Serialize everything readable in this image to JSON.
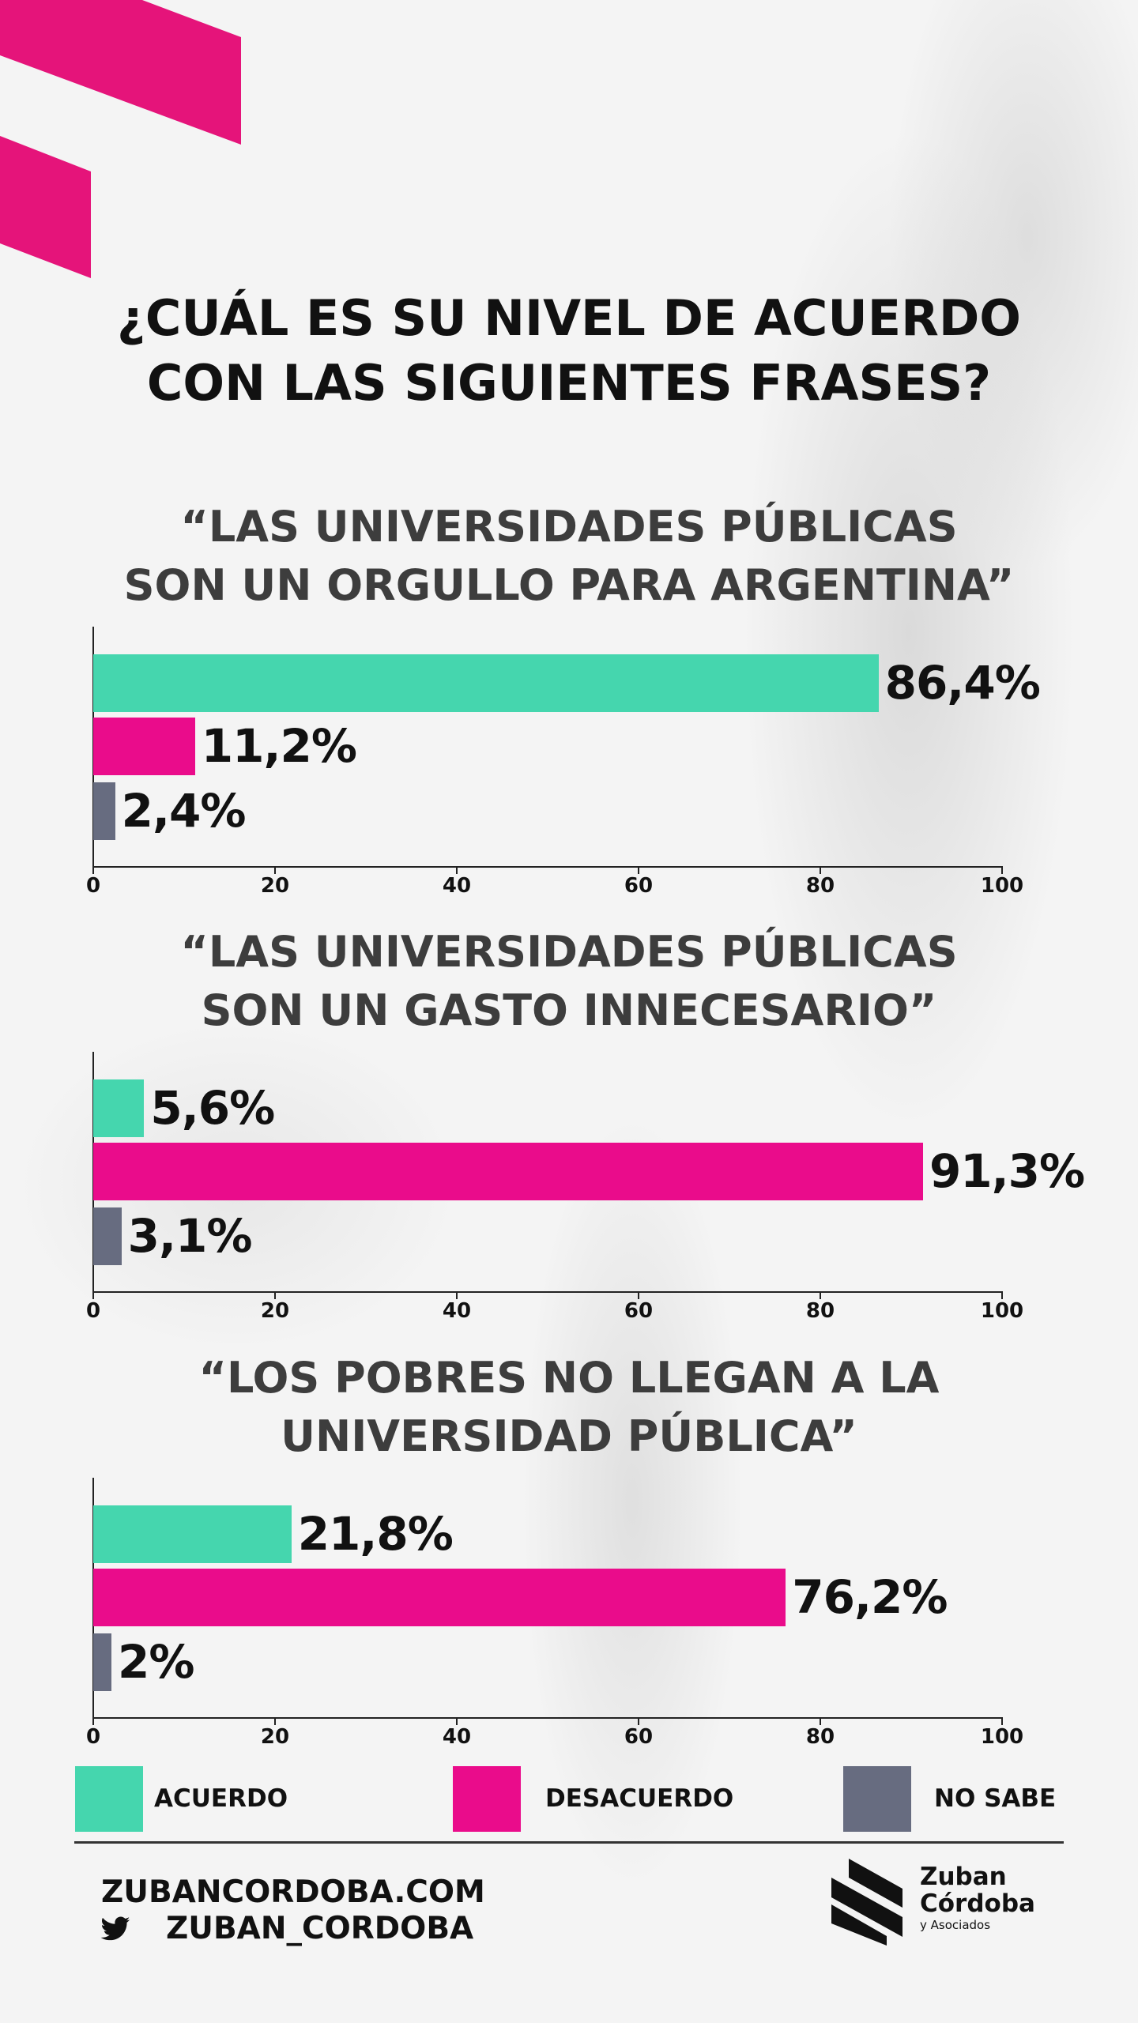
{
  "title": {
    "line1": "¿CUÁL ES SU NIVEL DE ACUERDO",
    "line2": "CON LAS SIGUIENTES FRASES?"
  },
  "colors": {
    "acuerdo": "#45d6ae",
    "desacuerdo": "#ea0c8b",
    "no_sabe": "#676c80",
    "deco": "#e5147a"
  },
  "chart_data": [
    {
      "type": "bar",
      "orientation": "horizontal",
      "title": "“LAS UNIVERSIDADES PÚBLICAS SON UN ORGULLO PARA ARGENTINA”",
      "title_lines": [
        "“LAS UNIVERSIDADES PÚBLICAS",
        "SON UN ORGULLO PARA ARGENTINA”"
      ],
      "categories": [
        "Acuerdo",
        "Desacuerdo",
        "No sabe"
      ],
      "values": [
        86.4,
        11.2,
        2.4
      ],
      "labels": [
        "86,4%",
        "11,2%",
        "2,4%"
      ],
      "xlim": [
        0,
        100
      ],
      "xticks": [
        "0",
        "20",
        "40",
        "60",
        "80",
        "100"
      ]
    },
    {
      "type": "bar",
      "orientation": "horizontal",
      "title": "“LAS UNIVERSIDADES PÚBLICAS SON UN GASTO INNECESARIO”",
      "title_lines": [
        "“LAS UNIVERSIDADES PÚBLICAS",
        "SON UN GASTO INNECESARIO”"
      ],
      "categories": [
        "Acuerdo",
        "Desacuerdo",
        "No sabe"
      ],
      "values": [
        5.6,
        91.3,
        3.1
      ],
      "labels": [
        "5,6%",
        "91,3%",
        "3,1%"
      ],
      "xlim": [
        0,
        100
      ],
      "xticks": [
        "0",
        "20",
        "40",
        "60",
        "80",
        "100"
      ]
    },
    {
      "type": "bar",
      "orientation": "horizontal",
      "title": "“LOS POBRES NO LLEGAN A LA UNIVERSIDAD PÚBLICA”",
      "title_lines": [
        "“LOS POBRES NO LLEGAN A LA",
        "UNIVERSIDAD PÚBLICA”"
      ],
      "categories": [
        "Acuerdo",
        "Desacuerdo",
        "No sabe"
      ],
      "values": [
        21.8,
        76.2,
        2
      ],
      "labels": [
        "21,8%",
        "76,2%",
        "2%"
      ],
      "xlim": [
        0,
        100
      ],
      "xticks": [
        "0",
        "20",
        "40",
        "60",
        "80",
        "100"
      ]
    }
  ],
  "legend": [
    {
      "label": "ACUERDO",
      "color": "#45d6ae"
    },
    {
      "label": "DESACUERDO",
      "color": "#ea0c8b"
    },
    {
      "label": "NO SABE",
      "color": "#676c80"
    }
  ],
  "footer": {
    "website": "ZUBANCORDOBA.COM",
    "twitter_icon": "twitter-bird-icon",
    "twitter": "ZUBAN_CORDOBA",
    "logo": {
      "line1": "Zuban",
      "line2": "Córdoba",
      "line3": "y Asociados"
    }
  }
}
